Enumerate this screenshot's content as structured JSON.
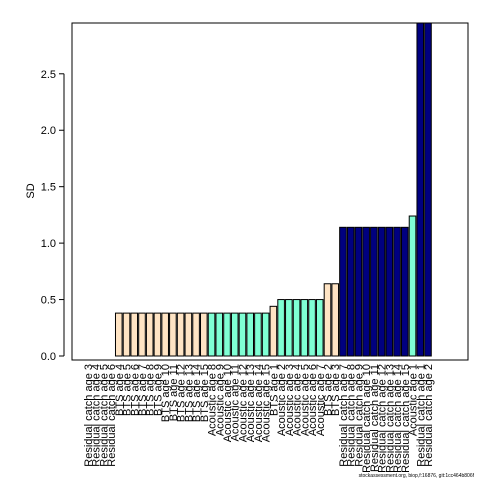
{
  "chart_data": {
    "type": "bar",
    "title": "",
    "xlabel": "",
    "ylabel": "SD",
    "ylim": [
      0,
      2.95
    ],
    "yticks": [
      0.0,
      0.5,
      1.0,
      1.5,
      2.0,
      2.5
    ],
    "ytick_labels": [
      "0.0",
      "0.5",
      "1.0",
      "1.5",
      "2.0",
      "2.5"
    ],
    "grid": false,
    "legend": "none",
    "categories": [
      "Residual catch age 3",
      "Residual catch age 4",
      "Residual catch age 5",
      "Residual catch age 6",
      "BTS age 4",
      "BTS age 5",
      "BTS age 6",
      "BTS age 7",
      "BTS age 8",
      "BTS age 9",
      "BTS age 10",
      "BTS age 11",
      "BTS age 12",
      "BTS age 13",
      "BTS age 14",
      "BTS age 15",
      "Acoustic age 8",
      "Acoustic age 9",
      "Acoustic age 10",
      "Acoustic age 11",
      "Acoustic age 12",
      "Acoustic age 13",
      "Acoustic age 14",
      "Acoustic age 15",
      "BTS age 1",
      "Acoustic age 2",
      "Acoustic age 3",
      "Acoustic age 4",
      "Acoustic age 5",
      "Acoustic age 6",
      "Acoustic age 7",
      "BTS age 2",
      "BTS age 3",
      "Residual catch age 7",
      "Residual catch age 8",
      "Residual catch age 9",
      "Residual catch age 10",
      "Residual catch age 11",
      "Residual catch age 12",
      "Residual catch age 13",
      "Residual catch age 14",
      "Residual catch age 15",
      "Acoustic age 1",
      "Residual catch age 1",
      "Residual catch age 2"
    ],
    "values": [
      0.0,
      0.0,
      0.0,
      0.0,
      0.38,
      0.38,
      0.38,
      0.38,
      0.38,
      0.38,
      0.38,
      0.38,
      0.38,
      0.38,
      0.38,
      0.38,
      0.38,
      0.38,
      0.38,
      0.38,
      0.38,
      0.38,
      0.38,
      0.38,
      0.44,
      0.5,
      0.5,
      0.5,
      0.5,
      0.5,
      0.5,
      0.64,
      0.64,
      1.14,
      1.14,
      1.14,
      1.14,
      1.14,
      1.14,
      1.14,
      1.14,
      1.14,
      1.24,
      2.95,
      2.95
    ],
    "group": [
      "Residual catch",
      "Residual catch",
      "Residual catch",
      "Residual catch",
      "BTS",
      "BTS",
      "BTS",
      "BTS",
      "BTS",
      "BTS",
      "BTS",
      "BTS",
      "BTS",
      "BTS",
      "BTS",
      "BTS",
      "Acoustic",
      "Acoustic",
      "Acoustic",
      "Acoustic",
      "Acoustic",
      "Acoustic",
      "Acoustic",
      "Acoustic",
      "BTS",
      "Acoustic",
      "Acoustic",
      "Acoustic",
      "Acoustic",
      "Acoustic",
      "Acoustic",
      "BTS",
      "BTS",
      "Residual catch",
      "Residual catch",
      "Residual catch",
      "Residual catch",
      "Residual catch",
      "Residual catch",
      "Residual catch",
      "Residual catch",
      "Residual catch",
      "Acoustic",
      "Residual catch",
      "Residual catch"
    ],
    "colors": {
      "Residual catch": "#000080",
      "BTS": "#FFE4C4",
      "Acoustic": "#7FFFD4"
    }
  },
  "footer": {
    "text": "stockassessment.org, biop,f:16876, git:1cc464b806f"
  }
}
